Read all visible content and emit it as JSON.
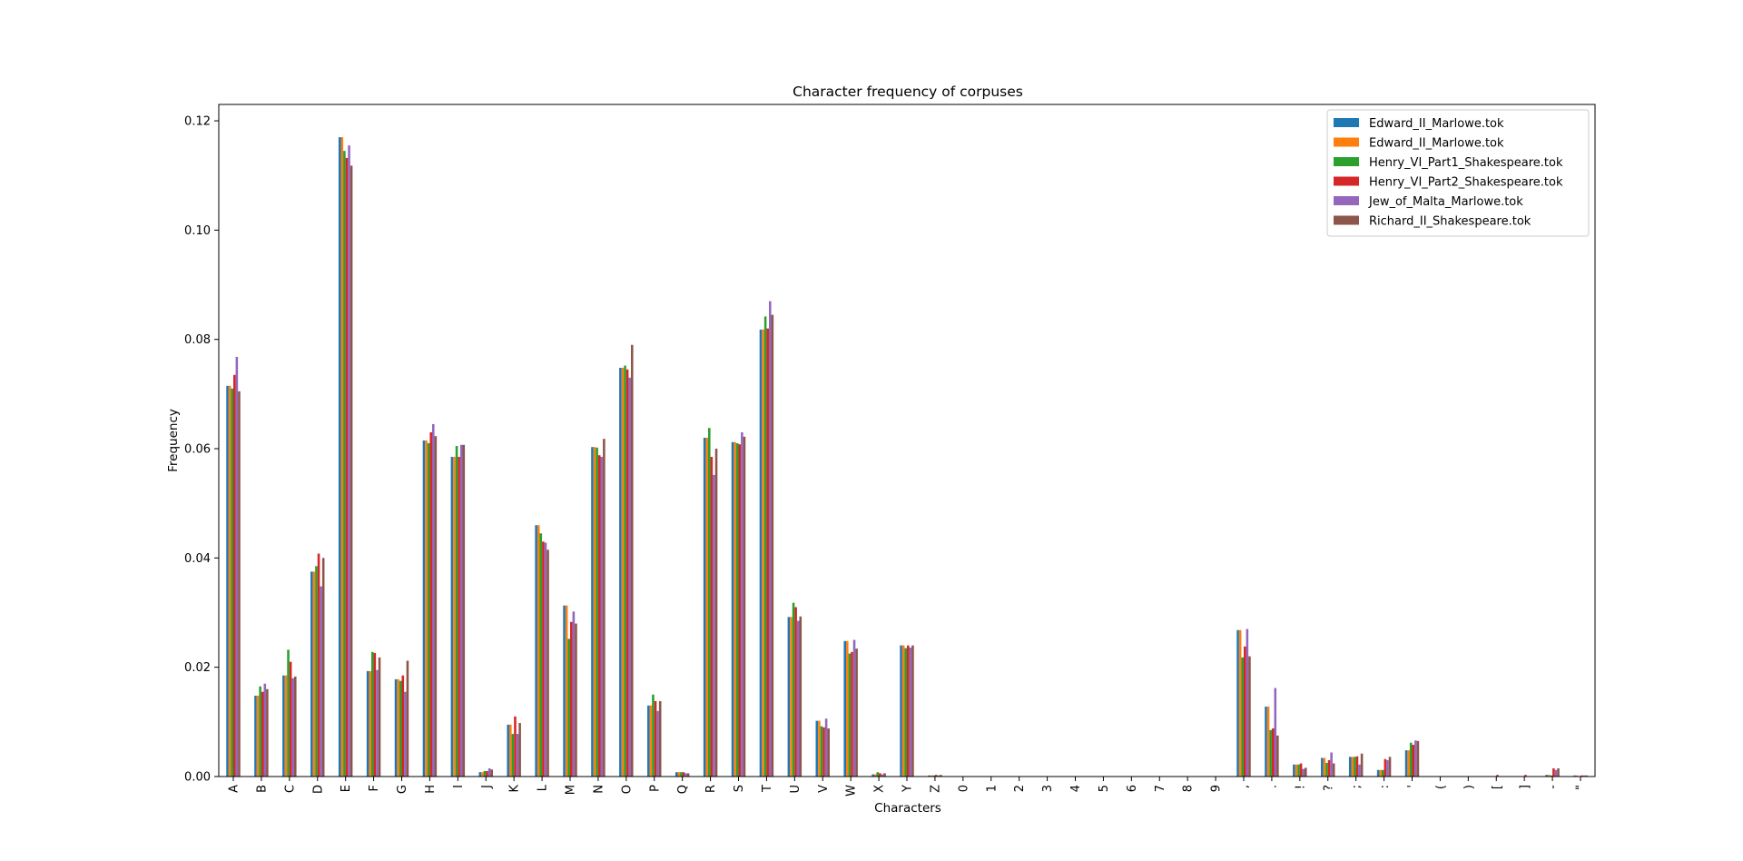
{
  "chart_data": {
    "type": "bar",
    "title": "Character frequency of corpuses",
    "xlabel": "Characters",
    "ylabel": "Frequency",
    "ylim": [
      0,
      0.123
    ],
    "yticks": [
      "0.00",
      "0.02",
      "0.04",
      "0.06",
      "0.08",
      "0.10",
      "0.12"
    ],
    "ytick_values": [
      0,
      0.02,
      0.04,
      0.06,
      0.08,
      0.1,
      0.12
    ],
    "grid": false,
    "legend_position": "top-right",
    "categories": [
      "A",
      "B",
      "C",
      "D",
      "E",
      "F",
      "G",
      "H",
      "I",
      "J",
      "K",
      "L",
      "M",
      "N",
      "O",
      "P",
      "Q",
      "R",
      "S",
      "T",
      "U",
      "V",
      "W",
      "X",
      "Y",
      "Z",
      "0",
      "1",
      "2",
      "3",
      "4",
      "5",
      "6",
      "7",
      "8",
      "9",
      ",",
      ".",
      "!",
      "?",
      ";",
      ":",
      "'",
      "(",
      ")",
      "[",
      "]",
      "-",
      "\""
    ],
    "series": [
      {
        "name": "Edward_II_Marlowe.tok",
        "color": "#1f77b4",
        "values": [
          0.0715,
          0.0148,
          0.0185,
          0.0375,
          0.117,
          0.0193,
          0.0178,
          0.0615,
          0.0585,
          0.0008,
          0.0095,
          0.046,
          0.0313,
          0.0603,
          0.0748,
          0.013,
          0.0008,
          0.062,
          0.0612,
          0.0818,
          0.0292,
          0.0102,
          0.0248,
          0.0004,
          0.024,
          0.0002,
          0,
          0,
          0,
          0,
          0,
          0,
          0,
          0,
          0,
          0,
          0.0268,
          0.0128,
          0.0022,
          0.0034,
          0.0036,
          0.0012,
          0.0048,
          0,
          0,
          0,
          0,
          0.0003,
          0.0002
        ]
      },
      {
        "name": "Edward_II_Marlowe.tok",
        "color": "#ff7f0e",
        "values": [
          0.0715,
          0.0148,
          0.0185,
          0.0375,
          0.117,
          0.0193,
          0.0178,
          0.0615,
          0.0585,
          0.0008,
          0.0095,
          0.046,
          0.0313,
          0.0603,
          0.0748,
          0.013,
          0.0008,
          0.062,
          0.0612,
          0.0818,
          0.0292,
          0.0102,
          0.0248,
          0.0004,
          0.024,
          0.0002,
          0,
          0,
          0,
          0,
          0,
          0,
          0,
          0,
          0,
          0,
          0.0268,
          0.0128,
          0.0022,
          0.0034,
          0.0036,
          0.0012,
          0.0048,
          0,
          0,
          0,
          0,
          0.0003,
          0.0002
        ]
      },
      {
        "name": "Henry_VI_Part1_Shakespeare.tok",
        "color": "#2ca02c",
        "values": [
          0.071,
          0.0165,
          0.0232,
          0.0385,
          0.1145,
          0.0228,
          0.0175,
          0.061,
          0.0605,
          0.001,
          0.0078,
          0.0445,
          0.0252,
          0.0602,
          0.0752,
          0.015,
          0.0008,
          0.0638,
          0.061,
          0.0842,
          0.0318,
          0.0092,
          0.0225,
          0.0008,
          0.0235,
          0.0002,
          0,
          0,
          0,
          0,
          0,
          0,
          0,
          0,
          0,
          0,
          0.0218,
          0.0085,
          0.0022,
          0.0025,
          0.0036,
          0.0012,
          0.0062,
          0,
          0,
          0,
          0,
          0.0002,
          0
        ]
      },
      {
        "name": "Henry_VI_Part2_Shakespeare.tok",
        "color": "#d62728",
        "values": [
          0.0735,
          0.0155,
          0.021,
          0.0408,
          0.1132,
          0.0226,
          0.0185,
          0.063,
          0.0585,
          0.001,
          0.011,
          0.043,
          0.0283,
          0.0588,
          0.0745,
          0.0138,
          0.0008,
          0.0585,
          0.0608,
          0.082,
          0.031,
          0.009,
          0.0228,
          0.0006,
          0.024,
          0.0003,
          0,
          0,
          0,
          0,
          0,
          0,
          0,
          0,
          0,
          0,
          0.0238,
          0.0088,
          0.0024,
          0.003,
          0.0037,
          0.0032,
          0.0058,
          0,
          0,
          0.0003,
          0.0003,
          0.0015,
          0.0002
        ]
      },
      {
        "name": "Jew_of_Malta_Marlowe.tok",
        "color": "#9467bd",
        "values": [
          0.0768,
          0.017,
          0.018,
          0.0348,
          0.1155,
          0.0195,
          0.0155,
          0.0645,
          0.0607,
          0.0015,
          0.0078,
          0.0428,
          0.0302,
          0.0585,
          0.073,
          0.012,
          0.0006,
          0.0552,
          0.063,
          0.087,
          0.0285,
          0.0106,
          0.025,
          0.0004,
          0.0236,
          0.0002,
          0,
          0,
          0,
          0,
          0,
          0,
          0,
          0,
          0,
          0,
          0.027,
          0.0162,
          0.0014,
          0.0044,
          0.0022,
          0.003,
          0.0066,
          0,
          0,
          0,
          0,
          0.0012,
          0.0002
        ]
      },
      {
        "name": "Richard_II_Shakespeare.tok",
        "color": "#8c564b",
        "values": [
          0.0705,
          0.016,
          0.0183,
          0.04,
          0.1118,
          0.0218,
          0.0212,
          0.0623,
          0.0607,
          0.0013,
          0.0098,
          0.0415,
          0.028,
          0.0618,
          0.079,
          0.0138,
          0.0006,
          0.06,
          0.0622,
          0.0845,
          0.0293,
          0.0088,
          0.0234,
          0.0006,
          0.024,
          0.0003,
          0,
          0,
          0,
          0,
          0,
          0,
          0,
          0,
          0,
          0,
          0.022,
          0.0075,
          0.0016,
          0.0024,
          0.0042,
          0.0036,
          0.0065,
          0,
          0,
          0,
          0,
          0.0015,
          0.0002
        ]
      }
    ]
  }
}
